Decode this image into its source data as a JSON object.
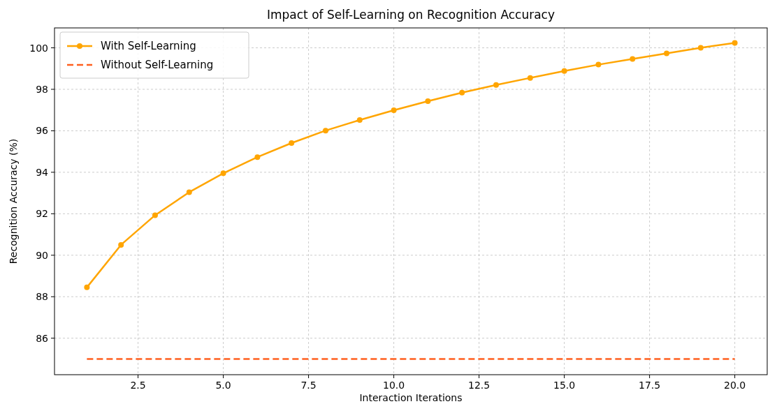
{
  "chart_data": {
    "type": "line",
    "title": "Impact of Self-Learning on Recognition Accuracy",
    "xlabel": "Interaction Iterations",
    "ylabel": "Recognition Accuracy (%)",
    "x": [
      1,
      2,
      3,
      4,
      5,
      6,
      7,
      8,
      9,
      10,
      11,
      12,
      13,
      14,
      15,
      16,
      17,
      18,
      19,
      20
    ],
    "series": [
      {
        "name": "With Self-Learning",
        "color": "#ffa500",
        "marker": "circle",
        "line_style": "solid",
        "values": [
          88.45,
          90.5,
          91.93,
          93.04,
          93.95,
          94.73,
          95.41,
          96.01,
          96.52,
          96.99,
          97.43,
          97.84,
          98.21,
          98.55,
          98.88,
          99.19,
          99.46,
          99.73,
          100.0,
          100.24
        ]
      },
      {
        "name": "Without Self-Learning",
        "color": "#ff5f1f",
        "marker": "none",
        "line_style": "dashed",
        "x": [
          1,
          20
        ],
        "values": [
          85,
          85
        ]
      }
    ],
    "xlim": [
      0.05,
      20.95
    ],
    "xticks": [
      {
        "value": 2.5,
        "label": "2.5"
      },
      {
        "value": 5,
        "label": "5.0"
      },
      {
        "value": 7.5,
        "label": "7.5"
      },
      {
        "value": 10,
        "label": "10.0"
      },
      {
        "value": 12.5,
        "label": "12.5"
      },
      {
        "value": 15,
        "label": "15.0"
      },
      {
        "value": 17.5,
        "label": "17.5"
      },
      {
        "value": 20,
        "label": "20.0"
      }
    ],
    "ylim": [
      84.24,
      100.96
    ],
    "yticks": [
      86,
      88,
      90,
      92,
      94,
      96,
      98,
      100
    ],
    "grid": true,
    "legend": "top left"
  }
}
